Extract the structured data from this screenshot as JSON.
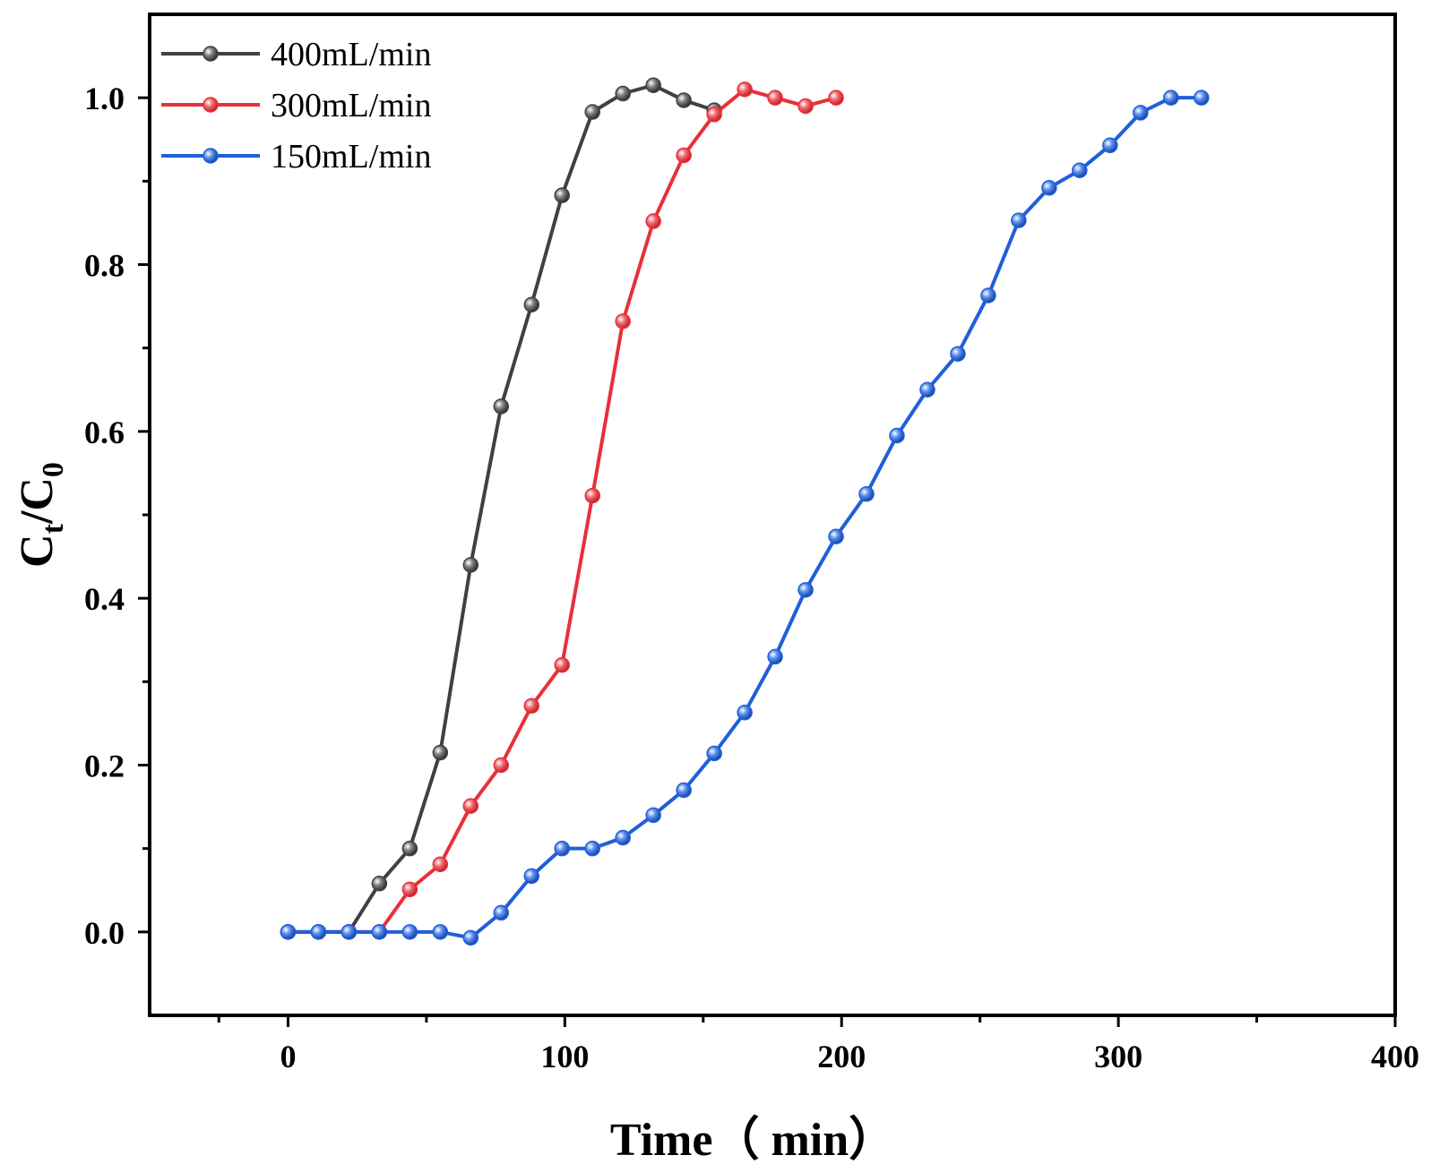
{
  "chart_data": {
    "type": "line",
    "title": "",
    "xlabel": "Time（ min）",
    "ylabel": {
      "main": "C",
      "sub1": "t",
      "sep": "/C",
      "sub2": "0"
    },
    "xlim": [
      -50,
      400
    ],
    "ylim": [
      -0.1,
      1.1
    ],
    "xticks": [
      0,
      100,
      200,
      300,
      400
    ],
    "xtick_labels": [
      "0",
      "100",
      "200",
      "300",
      "400"
    ],
    "yticks": [
      0.0,
      0.2,
      0.4,
      0.6,
      0.8,
      1.0
    ],
    "ytick_labels": [
      "0.0",
      "0.2",
      "0.4",
      "0.6",
      "0.8",
      "1.0"
    ],
    "grid": false,
    "legend_position": "top-left",
    "series": [
      {
        "name": "400mL/min",
        "color": "#404040",
        "x": [
          0,
          11,
          22,
          33,
          44,
          55,
          66,
          77,
          88,
          99,
          110,
          121,
          132,
          143,
          154
        ],
        "y": [
          0.0,
          0.0,
          0.0,
          0.058,
          0.1,
          0.215,
          0.44,
          0.63,
          0.752,
          0.883,
          0.983,
          1.005,
          1.015,
          0.997,
          0.985
        ]
      },
      {
        "name": "300mL/min",
        "color": "#e8303a",
        "x": [
          0,
          11,
          22,
          33,
          44,
          55,
          66,
          77,
          88,
          99,
          110,
          121,
          132,
          143,
          154,
          165,
          176,
          187,
          198
        ],
        "y": [
          0.0,
          0.0,
          0.0,
          0.0,
          0.051,
          0.081,
          0.151,
          0.2,
          0.271,
          0.32,
          0.523,
          0.732,
          0.852,
          0.931,
          0.98,
          1.01,
          1.0,
          0.99,
          1.0
        ]
      },
      {
        "name": "150mL/min",
        "color": "#1f5fd8",
        "x": [
          0,
          11,
          22,
          33,
          44,
          55,
          66,
          77,
          88,
          99,
          110,
          121,
          132,
          143,
          154,
          165,
          176,
          187,
          198,
          209,
          220,
          231,
          242,
          253,
          264,
          275,
          286,
          297,
          308,
          319,
          330
        ],
        "y": [
          0.0,
          0.0,
          0.0,
          0.0,
          0.0,
          0.0,
          -0.007,
          0.023,
          0.067,
          0.1,
          0.1,
          0.113,
          0.14,
          0.17,
          0.214,
          0.263,
          0.33,
          0.41,
          0.474,
          0.525,
          0.595,
          0.65,
          0.693,
          0.763,
          0.853,
          0.892,
          0.913,
          0.943,
          0.982,
          1.0,
          1.0
        ]
      }
    ]
  }
}
